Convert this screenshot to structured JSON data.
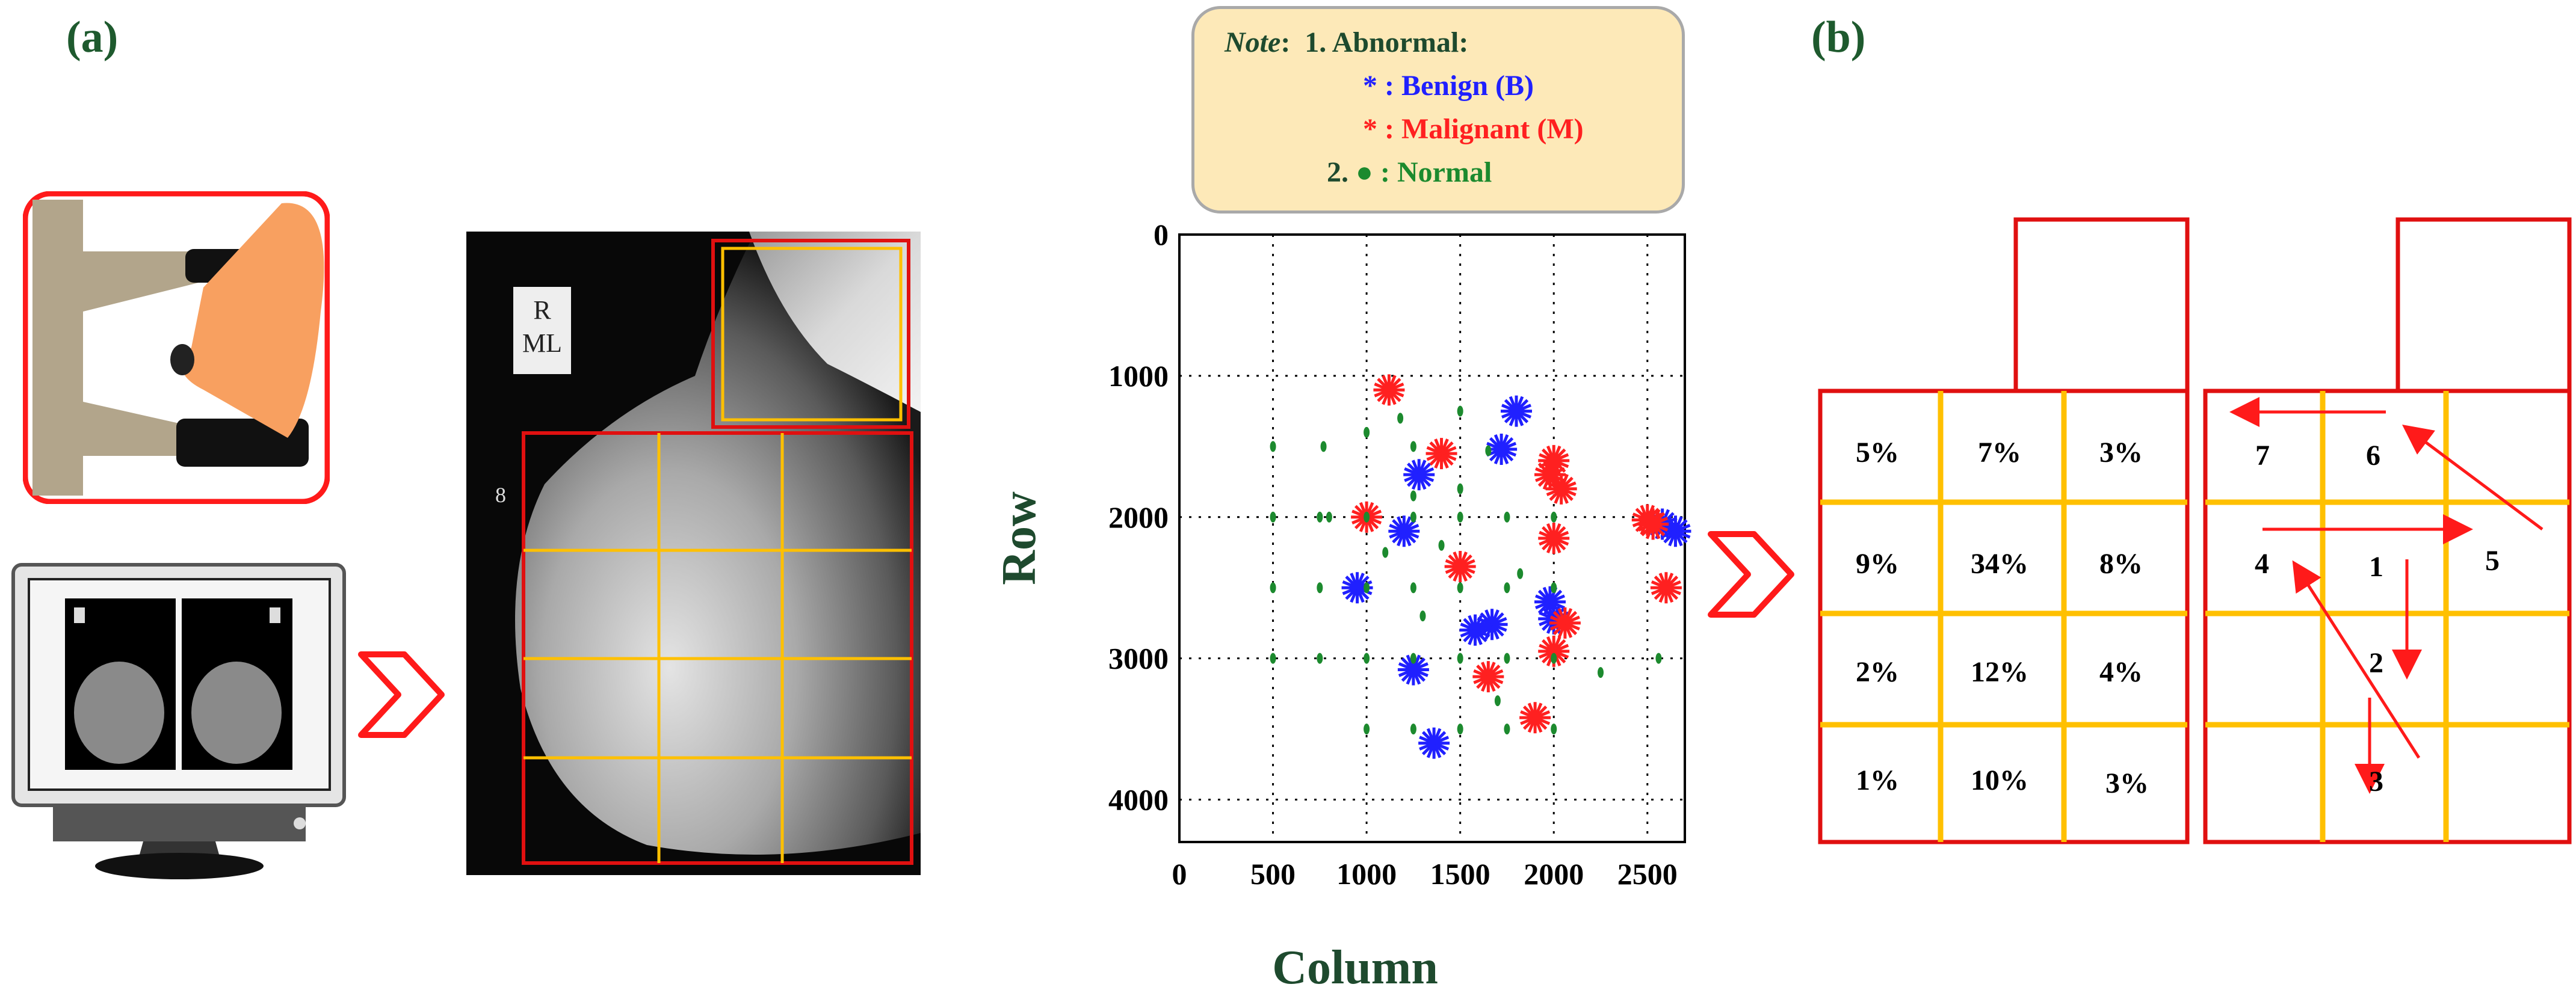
{
  "panels": {
    "a_label": "(a)",
    "b_label": "(b)"
  },
  "film": {
    "marker_line1": "R",
    "marker_line2": "ML",
    "side_mark": "8"
  },
  "note": {
    "prefix": "Note",
    "colon": ":",
    "item1": "1. Abnormal:",
    "benign": "* : Benign (B)",
    "malignant": "* : Malignant (M)",
    "normal_num": "2.",
    "normal": " : Normal",
    "colors": {
      "benign": "#2020ff",
      "malignant": "#ff2020",
      "normal": "#1c8a2e",
      "text": "#1e4a2e"
    }
  },
  "chart_data": {
    "type": "scatter",
    "xlabel": "Column",
    "ylabel": "Row",
    "xlim": [
      0,
      2700
    ],
    "ylim": [
      4300,
      0
    ],
    "y_inverted": true,
    "x_ticks": [
      "0",
      "500",
      "1000",
      "1500",
      "2000",
      "2500"
    ],
    "y_ticks": [
      "0",
      "1000",
      "2000",
      "3000",
      "4000"
    ],
    "grid": true,
    "series": [
      {
        "name": "Benign (B)",
        "marker": "*",
        "color": "#2020ff",
        "points": [
          [
            1800,
            1250
          ],
          [
            1720,
            1520
          ],
          [
            1200,
            2100
          ],
          [
            1280,
            1700
          ],
          [
            950,
            2500
          ],
          [
            1670,
            2760
          ],
          [
            1580,
            2800
          ],
          [
            1980,
            2600
          ],
          [
            2000,
            2720
          ],
          [
            1250,
            3080
          ],
          [
            1360,
            3600
          ],
          [
            2580,
            2050
          ],
          [
            2650,
            2100
          ]
        ]
      },
      {
        "name": "Malignant (M)",
        "marker": "*",
        "color": "#ff2020",
        "points": [
          [
            1120,
            1100
          ],
          [
            1400,
            1550
          ],
          [
            1980,
            1700
          ],
          [
            2040,
            1800
          ],
          [
            2000,
            1600
          ],
          [
            1000,
            2000
          ],
          [
            1500,
            2350
          ],
          [
            2000,
            2150
          ],
          [
            2530,
            2050
          ],
          [
            2500,
            2020
          ],
          [
            2060,
            2750
          ],
          [
            1650,
            3130
          ],
          [
            1900,
            3420
          ],
          [
            2000,
            2950
          ],
          [
            2600,
            2500
          ]
        ]
      },
      {
        "name": "Normal",
        "marker": "o",
        "color": "#1c8a2e",
        "points": [
          [
            500,
            1500
          ],
          [
            770,
            1500
          ],
          [
            1000,
            1400
          ],
          [
            1250,
            1500
          ],
          [
            1500,
            1250
          ],
          [
            1650,
            1530
          ],
          [
            1500,
            1800
          ],
          [
            1250,
            1850
          ],
          [
            500,
            2000
          ],
          [
            750,
            2000
          ],
          [
            800,
            2000
          ],
          [
            1000,
            2000
          ],
          [
            1250,
            2000
          ],
          [
            1500,
            2000
          ],
          [
            1750,
            2000
          ],
          [
            2000,
            2000
          ],
          [
            500,
            2500
          ],
          [
            750,
            2500
          ],
          [
            1000,
            2500
          ],
          [
            1250,
            2500
          ],
          [
            1500,
            2500
          ],
          [
            1750,
            2500
          ],
          [
            2000,
            2500
          ],
          [
            500,
            3000
          ],
          [
            750,
            3000
          ],
          [
            1000,
            3000
          ],
          [
            1250,
            3000
          ],
          [
            1500,
            3000
          ],
          [
            1750,
            3000
          ],
          [
            2000,
            3000
          ],
          [
            1000,
            3500
          ],
          [
            1250,
            3500
          ],
          [
            1500,
            3500
          ],
          [
            1750,
            3500
          ],
          [
            2000,
            3500
          ],
          [
            2250,
            3100
          ],
          [
            1100,
            2250
          ],
          [
            1400,
            2200
          ],
          [
            1300,
            2700
          ],
          [
            1700,
            3300
          ],
          [
            2560,
            3000
          ],
          [
            1820,
            2400
          ],
          [
            1180,
            1300
          ]
        ]
      }
    ]
  },
  "grid_b": {
    "percentages": [
      [
        "5%",
        "7%",
        "3%"
      ],
      [
        "9%",
        "34%",
        "8%"
      ],
      [
        "2%",
        "12%",
        "4%"
      ],
      [
        "1%",
        "10%",
        "3%"
      ]
    ],
    "order_labels": [
      "7",
      "6",
      "4",
      "1",
      "5",
      "2",
      "3"
    ]
  },
  "icons": {
    "mammography": "mammography-machine-icon",
    "monitor": "monitor-icon",
    "arrows": "chevron-right-icon"
  }
}
